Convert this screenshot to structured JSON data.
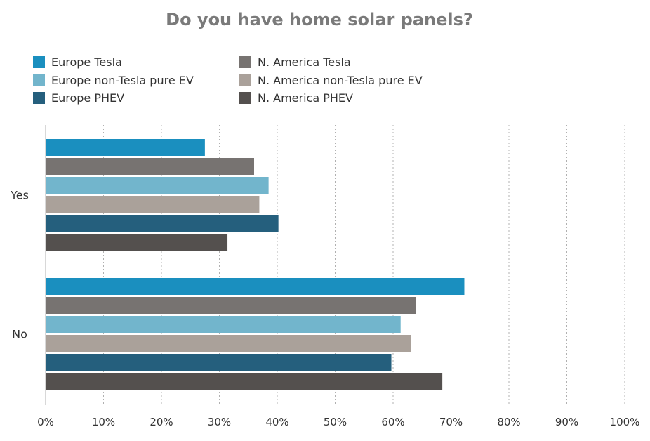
{
  "chart_data": {
    "type": "bar",
    "orientation": "horizontal",
    "title": "Do you have home solar panels?",
    "xlabel": "",
    "ylabel": "",
    "xlim": [
      0,
      100
    ],
    "x_ticks": [
      "0%",
      "10%",
      "20%",
      "30%",
      "40%",
      "50%",
      "60%",
      "70%",
      "80%",
      "90%",
      "100%"
    ],
    "categories": [
      "Yes",
      "No"
    ],
    "grid": "vertical-dotted",
    "legend_position": "top",
    "series": [
      {
        "name": "Europe Tesla",
        "color": "#1a8fbf",
        "values": [
          27.5,
          72.3
        ]
      },
      {
        "name": "N. America Tesla",
        "color": "#777371",
        "values": [
          36.0,
          64.0
        ]
      },
      {
        "name": "Europe non-Tesla pure EV",
        "color": "#72b5cc",
        "values": [
          38.5,
          61.3
        ]
      },
      {
        "name": "N. America non-Tesla pure EV",
        "color": "#aaa19a",
        "values": [
          36.9,
          63.1
        ]
      },
      {
        "name": "Europe PHEV",
        "color": "#255f7d",
        "values": [
          40.2,
          59.7
        ]
      },
      {
        "name": "N. America PHEV",
        "color": "#54504e",
        "values": [
          31.4,
          68.5
        ]
      }
    ],
    "legend_columns": [
      [
        "Europe Tesla",
        "Europe non-Tesla pure EV",
        "Europe PHEV"
      ],
      [
        "N. America Tesla",
        "N. America non-Tesla pure EV",
        "N. America PHEV"
      ]
    ]
  }
}
